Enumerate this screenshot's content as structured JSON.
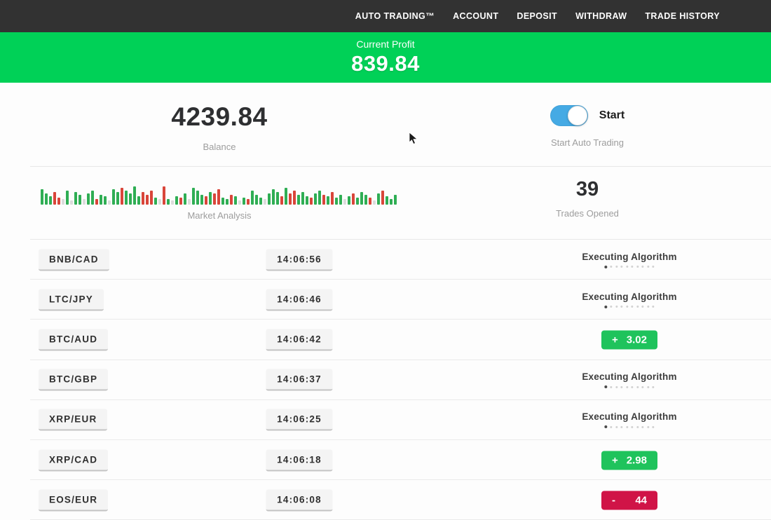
{
  "nav": {
    "items": [
      {
        "label": "AUTO TRADING™"
      },
      {
        "label": "ACCOUNT"
      },
      {
        "label": "DEPOSIT"
      },
      {
        "label": "WITHDRAW"
      },
      {
        "label": "TRADE HISTORY"
      }
    ]
  },
  "banner": {
    "label": "Current Profit",
    "value": "839.84",
    "bg": "#00d157"
  },
  "stats": {
    "balance": {
      "value": "4239.84",
      "label": "Balance"
    },
    "auto_trading": {
      "toggle_label": "Start",
      "label": "Start Auto Trading",
      "toggle_on": true,
      "toggle_color": "#45aae4"
    },
    "market": {
      "label": "Market Analysis"
    },
    "trades_opened": {
      "value": "39",
      "label": "Trades Opened"
    }
  },
  "market_chart": {
    "type": "bar",
    "bar_colors": {
      "g": "#2fae54",
      "r": "#d9453a",
      "l": "#dcdcdc"
    },
    "bars": [
      [
        "g",
        22
      ],
      [
        "g",
        16
      ],
      [
        "g",
        12
      ],
      [
        "r",
        18
      ],
      [
        "r",
        10
      ],
      [
        "l",
        8
      ],
      [
        "g",
        20
      ],
      [
        "l",
        6
      ],
      [
        "g",
        18
      ],
      [
        "g",
        14
      ],
      [
        "l",
        8
      ],
      [
        "g",
        16
      ],
      [
        "g",
        20
      ],
      [
        "r",
        8
      ],
      [
        "g",
        14
      ],
      [
        "g",
        12
      ],
      [
        "l",
        6
      ],
      [
        "g",
        22
      ],
      [
        "g",
        18
      ],
      [
        "r",
        24
      ],
      [
        "g",
        20
      ],
      [
        "g",
        16
      ],
      [
        "g",
        26
      ],
      [
        "g",
        12
      ],
      [
        "r",
        18
      ],
      [
        "r",
        14
      ],
      [
        "r",
        20
      ],
      [
        "g",
        10
      ],
      [
        "l",
        8
      ],
      [
        "r",
        26
      ],
      [
        "g",
        8
      ],
      [
        "l",
        6
      ],
      [
        "g",
        12
      ],
      [
        "r",
        10
      ],
      [
        "g",
        16
      ],
      [
        "l",
        8
      ],
      [
        "g",
        24
      ],
      [
        "g",
        20
      ],
      [
        "g",
        14
      ],
      [
        "r",
        12
      ],
      [
        "g",
        18
      ],
      [
        "r",
        16
      ],
      [
        "r",
        22
      ],
      [
        "g",
        10
      ],
      [
        "g",
        8
      ],
      [
        "r",
        14
      ],
      [
        "g",
        12
      ],
      [
        "l",
        6
      ],
      [
        "g",
        10
      ],
      [
        "r",
        8
      ],
      [
        "g",
        20
      ],
      [
        "g",
        14
      ],
      [
        "g",
        10
      ],
      [
        "l",
        8
      ],
      [
        "g",
        16
      ],
      [
        "g",
        22
      ],
      [
        "g",
        18
      ],
      [
        "r",
        12
      ],
      [
        "g",
        24
      ],
      [
        "r",
        16
      ],
      [
        "r",
        20
      ],
      [
        "g",
        14
      ],
      [
        "g",
        18
      ],
      [
        "g",
        12
      ],
      [
        "r",
        10
      ],
      [
        "g",
        16
      ],
      [
        "g",
        20
      ],
      [
        "r",
        14
      ],
      [
        "g",
        12
      ],
      [
        "r",
        18
      ],
      [
        "g",
        10
      ],
      [
        "g",
        14
      ],
      [
        "l",
        8
      ],
      [
        "g",
        12
      ],
      [
        "r",
        16
      ],
      [
        "g",
        10
      ],
      [
        "g",
        18
      ],
      [
        "g",
        14
      ],
      [
        "r",
        10
      ],
      [
        "l",
        6
      ],
      [
        "g",
        16
      ],
      [
        "r",
        20
      ],
      [
        "g",
        12
      ],
      [
        "g",
        8
      ],
      [
        "g",
        14
      ]
    ]
  },
  "trades": {
    "executing_label": "Executing Algorithm",
    "loader_dots": 10,
    "rows": [
      {
        "pair": "BNB/CAD",
        "time": "14:06:56",
        "status": {
          "type": "executing"
        }
      },
      {
        "pair": "LTC/JPY",
        "time": "14:06:46",
        "status": {
          "type": "executing"
        }
      },
      {
        "pair": "BTC/AUD",
        "time": "14:06:42",
        "status": {
          "type": "result",
          "sign": "+",
          "value": "3.02",
          "color": "#1fc35c"
        }
      },
      {
        "pair": "BTC/GBP",
        "time": "14:06:37",
        "status": {
          "type": "executing"
        }
      },
      {
        "pair": "XRP/EUR",
        "time": "14:06:25",
        "status": {
          "type": "executing"
        }
      },
      {
        "pair": "XRP/CAD",
        "time": "14:06:18",
        "status": {
          "type": "result",
          "sign": "+",
          "value": "2.98",
          "color": "#1fc35c"
        }
      },
      {
        "pair": "EOS/EUR",
        "time": "14:06:08",
        "status": {
          "type": "result",
          "sign": "-",
          "value": "44",
          "color": "#d01447"
        }
      }
    ]
  }
}
